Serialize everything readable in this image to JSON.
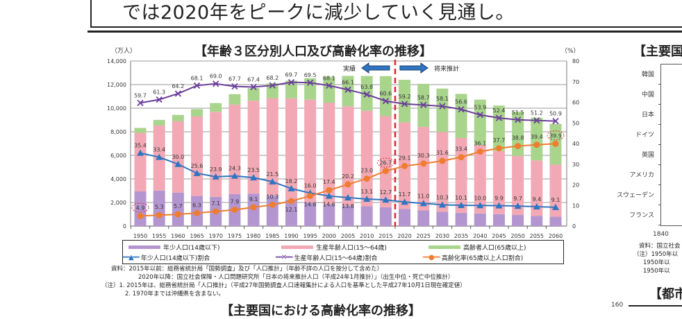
{
  "headline": "では2020年をピークに減少していく見通し。",
  "chart_data": {
    "type": "bar",
    "stacked": true,
    "title": "【年齢３区分別人口及び高齢化率の推移】",
    "ylabel_left": "（万人）",
    "ylabel_right": "（%）",
    "ylim_left": [
      0,
      14000
    ],
    "ylim_right": [
      0,
      80
    ],
    "yticks_left": [
      "0",
      "2,000",
      "4,000",
      "6,000",
      "8,000",
      "10,000",
      "12,000",
      "14,000"
    ],
    "yticks_right": [
      "0",
      "10",
      "20",
      "30",
      "40",
      "50",
      "60",
      "70",
      "80"
    ],
    "grid": true,
    "categories": [
      "1950",
      "1955",
      "1960",
      "1965",
      "1970",
      "1975",
      "1980",
      "1985",
      "1990",
      "1995",
      "2000",
      "2005",
      "2010",
      "2015",
      "2020",
      "2025",
      "2030",
      "2035",
      "2040",
      "2045",
      "2050",
      "2055",
      "2060"
    ],
    "bar_series": [
      {
        "name": "年少人口(14歳以下)",
        "color": "#b396cf",
        "values": [
          2943,
          3012,
          2843,
          2553,
          2482,
          2722,
          2751,
          2603,
          2249,
          2001,
          1847,
          1752,
          1680,
          1595,
          1457,
          1324,
          1204,
          1129,
          1073,
          1012,
          939,
          861,
          791
        ]
      },
      {
        "name": "生産年齢人口(15～64歳)",
        "color": "#f2a9b5",
        "values": [
          4966,
          5517,
          6047,
          6744,
          7212,
          7581,
          7883,
          8251,
          8590,
          8716,
          8622,
          8409,
          8103,
          7728,
          7341,
          7085,
          6773,
          6343,
          5787,
          5353,
          5001,
          4706,
          4418
        ]
      },
      {
        "name": "高齢者人口(65歳以上)",
        "color": "#a9d48c",
        "values": [
          416,
          479,
          540,
          624,
          739,
          887,
          1065,
          1247,
          1489,
          1826,
          2204,
          2576,
          2948,
          3395,
          3612,
          3657,
          3685,
          3741,
          3868,
          3856,
          3768,
          3626,
          3464
        ]
      }
    ],
    "line_series": [
      {
        "name": "年少人口(14歳以下)割合",
        "color": "#2f75c1",
        "marker": "triangle",
        "values": [
          35.4,
          33.4,
          30.0,
          25.6,
          23.9,
          24.3,
          23.5,
          21.5,
          18.2,
          16.0,
          14.6,
          13.8,
          13.1,
          12.7,
          11.7,
          11.0,
          10.3,
          10.1,
          10.0,
          9.9,
          9.7,
          9.4,
          9.1
        ]
      },
      {
        "name": "生産年齢人口(15～64歳)割合",
        "color": "#6b3e9b",
        "marker": "x",
        "values": [
          59.7,
          61.3,
          64.2,
          68.1,
          69.0,
          67.7,
          67.4,
          68.2,
          69.7,
          69.5,
          68.1,
          66.1,
          63.8,
          60.6,
          59.2,
          58.7,
          58.1,
          56.6,
          53.9,
          52.4,
          51.5,
          51.2,
          50.9
        ]
      },
      {
        "name": "高齢化率(65歳以上人口割合)",
        "color": "#ef7d2f",
        "marker": "circle",
        "values": [
          4.9,
          5.3,
          5.7,
          6.3,
          7.1,
          7.9,
          9.1,
          10.3,
          12.1,
          14.6,
          17.4,
          20.2,
          23.0,
          26.7,
          29.1,
          30.3,
          31.6,
          33.4,
          36.1,
          37.7,
          38.8,
          39.4,
          39.9
        ]
      }
    ],
    "highlighted_labels": [
      "1950 高齢化率 4.9",
      "2015 高齢化率 26.7",
      "2060 高齢化率 39.9"
    ],
    "annotations": {
      "actual": "実績",
      "projection": "将来推計",
      "divider_after": "2015"
    }
  },
  "notes": [
    "資料：2015年以前：総務省統計局「国勢調査」及び「人口推計」（年齢不詳の人口を按分して含めた）",
    "2020年以降：国立社会保障・人口問題研究所「日本の将来推計人口（平成24年1月推計）」（出生中位・死亡中位推計）",
    "（注）1. 2015年は、総務省統計局「人口推計」（平成27年国勢調査人口速報集計による人口を基準とした平成27年10月1日現在確定値）",
    "2. 1970年までは沖縄県を含まない。"
  ],
  "next_section_title": "【主要国における高齢化率の推移】",
  "right_panel": {
    "title": "【主要国",
    "countries": [
      "韓国",
      "中国",
      "日本",
      "ドイツ",
      "英国",
      "アメリカ",
      "スウェーデン",
      "フランス"
    ],
    "x_tick": "1840",
    "notes": [
      "資料：国立社会",
      "（注）1950年以",
      "1950年以",
      "1950年以"
    ],
    "next_title": "【都市",
    "next_y_tick": "160"
  }
}
